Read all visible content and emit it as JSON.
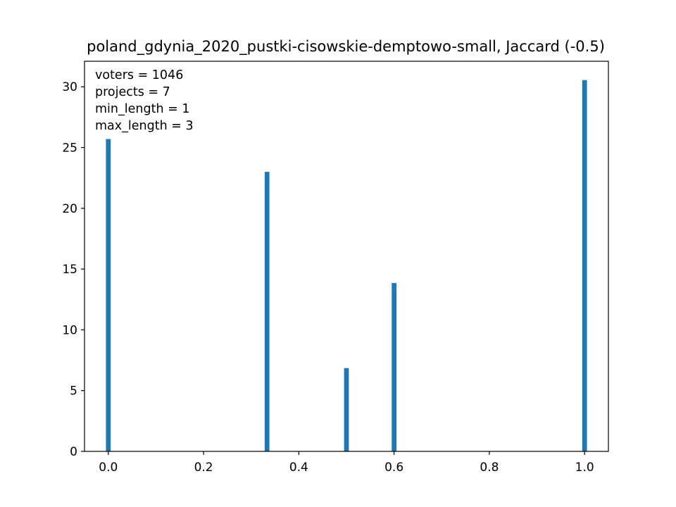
{
  "chart_data": {
    "type": "bar",
    "title": "poland_gdynia_2020_pustki-cisowskie-demptowo-small, Jaccard (-0.5)",
    "xlabel": "",
    "ylabel": "",
    "xlim": [
      -0.05,
      1.05
    ],
    "ylim": [
      0,
      32.1
    ],
    "bar_width": 0.01,
    "color": "#1f77b4",
    "x": [
      0.0,
      0.3333,
      0.5,
      0.6,
      1.0
    ],
    "values": [
      25.7,
      23.0,
      6.85,
      13.85,
      30.55
    ],
    "x_ticks": [
      0.0,
      0.2,
      0.4,
      0.6,
      0.8,
      1.0
    ],
    "x_tick_labels": [
      "0.0",
      "0.2",
      "0.4",
      "0.6",
      "0.8",
      "1.0"
    ],
    "y_ticks": [
      0,
      5,
      10,
      15,
      20,
      25,
      30
    ],
    "y_tick_labels": [
      "0",
      "5",
      "10",
      "15",
      "20",
      "25",
      "30"
    ],
    "grid": false,
    "annotations": [
      "voters = 1046",
      "projects = 7",
      "min_length = 1",
      "max_length = 3"
    ]
  }
}
